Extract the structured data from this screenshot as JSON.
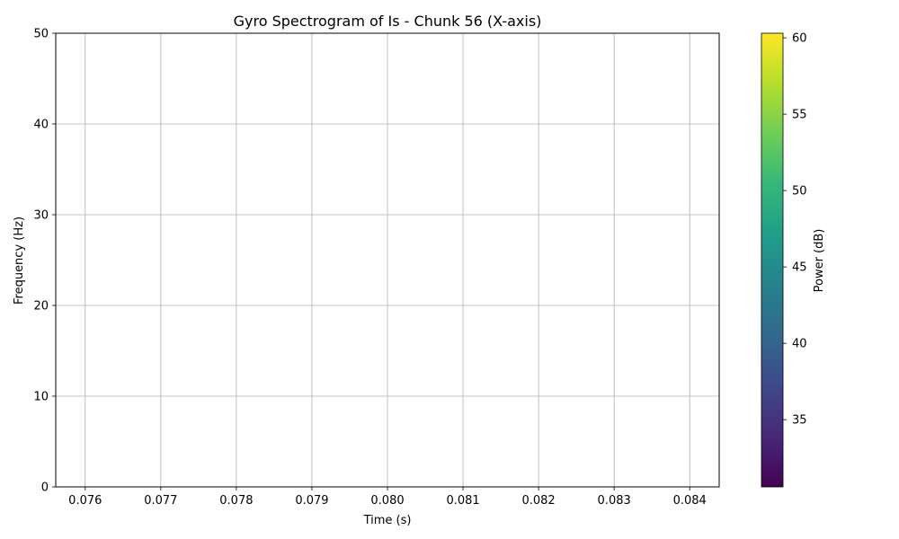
{
  "chart_data": {
    "type": "heatmap",
    "title": "Gyro Spectrogram of Is - Chunk 56 (X-axis)",
    "xlabel": "Time (s)",
    "ylabel": "Frequency (Hz)",
    "xlim": [
      0.07561,
      0.08439
    ],
    "ylim": [
      0,
      50
    ],
    "x_ticks": [
      "0.076",
      "0.077",
      "0.078",
      "0.079",
      "0.080",
      "0.081",
      "0.082",
      "0.083",
      "0.084"
    ],
    "x_tick_values": [
      0.076,
      0.077,
      0.078,
      0.079,
      0.08,
      0.081,
      0.082,
      0.083,
      0.084
    ],
    "y_ticks": [
      "0",
      "10",
      "20",
      "30",
      "40",
      "50"
    ],
    "y_tick_values": [
      0,
      10,
      20,
      30,
      40,
      50
    ],
    "grid": true,
    "data": [],
    "colorbar": {
      "label": "Power (dB)",
      "colormap": "viridis",
      "range": [
        30.6,
        60.3
      ],
      "ticks": [
        "35",
        "40",
        "45",
        "50",
        "55",
        "60"
      ],
      "tick_values": [
        35,
        40,
        45,
        50,
        55,
        60
      ],
      "colors": [
        "#440154",
        "#482878",
        "#3e4989",
        "#31688e",
        "#26828e",
        "#1f9e89",
        "#35b779",
        "#6ece58",
        "#b5de2b",
        "#fde725"
      ]
    }
  }
}
